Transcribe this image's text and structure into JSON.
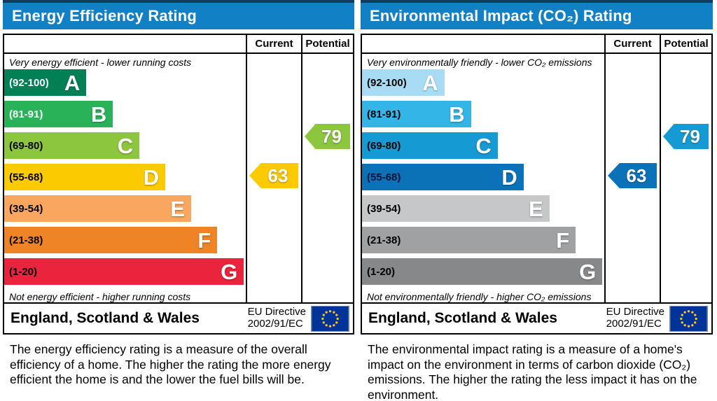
{
  "chart_data": [
    {
      "type": "bar",
      "title": "Energy Efficiency Rating",
      "scale_bands": [
        {
          "grade": "A",
          "min": 92,
          "max": 100
        },
        {
          "grade": "B",
          "min": 81,
          "max": 91
        },
        {
          "grade": "C",
          "min": 69,
          "max": 80
        },
        {
          "grade": "D",
          "min": 55,
          "max": 68
        },
        {
          "grade": "E",
          "min": 39,
          "max": 54
        },
        {
          "grade": "F",
          "min": 21,
          "max": 38
        },
        {
          "grade": "G",
          "min": 1,
          "max": 20
        }
      ],
      "current": 63,
      "current_band": "D",
      "potential": 79,
      "potential_band": "C",
      "top_note": "Very energy efficient - lower running costs",
      "bottom_note": "Not energy efficient - higher running costs",
      "region": "England, Scotland & Wales",
      "directive": "EU Directive 2002/91/EC"
    },
    {
      "type": "bar",
      "title": "Environmental Impact (CO₂) Rating",
      "scale_bands": [
        {
          "grade": "A",
          "min": 92,
          "max": 100
        },
        {
          "grade": "B",
          "min": 81,
          "max": 91
        },
        {
          "grade": "C",
          "min": 69,
          "max": 80
        },
        {
          "grade": "D",
          "min": 55,
          "max": 68
        },
        {
          "grade": "E",
          "min": 39,
          "max": 54
        },
        {
          "grade": "F",
          "min": 21,
          "max": 38
        },
        {
          "grade": "G",
          "min": 1,
          "max": 20
        }
      ],
      "current": 63,
      "current_band": "D",
      "potential": 79,
      "potential_band": "C",
      "top_note": "Very environmentally friendly - lower CO₂ emissions",
      "bottom_note": "Not environmentally friendly - higher CO₂ emissions",
      "region": "England, Scotland & Wales",
      "directive": "EU Directive 2002/91/EC"
    }
  ],
  "panels": [
    {
      "title": "Energy Efficiency Rating",
      "columns": {
        "current": "Current",
        "potential": "Potential"
      },
      "top_note": "Very energy efficient - lower running costs",
      "bottom_note": "Not energy efficient - higher running costs",
      "bands": [
        {
          "grade": "A",
          "range": "(92-100)",
          "color": "#008054",
          "width_pct": 34,
          "label_color": "#ffffff"
        },
        {
          "grade": "B",
          "range": "(81-91)",
          "color": "#2ab259",
          "width_pct": 45,
          "label_color": "#ffffff"
        },
        {
          "grade": "C",
          "range": "(69-80)",
          "color": "#8cc63f",
          "width_pct": 56,
          "label_color": "#000000"
        },
        {
          "grade": "D",
          "range": "(55-68)",
          "color": "#fcca00",
          "width_pct": 66.7,
          "label_color": "#000000"
        },
        {
          "grade": "E",
          "range": "(39-54)",
          "color": "#f9a65e",
          "width_pct": 77.4,
          "label_color": "#000000"
        },
        {
          "grade": "F",
          "range": "(21-38)",
          "color": "#ee8426",
          "width_pct": 88.2,
          "label_color": "#000000"
        },
        {
          "grade": "G",
          "range": "(1-20)",
          "color": "#e9243c",
          "width_pct": 99.2,
          "label_color": "#000000"
        }
      ],
      "current": {
        "value": "63",
        "color": "#fcca00"
      },
      "potential": {
        "value": "79",
        "color": "#8cc63f"
      },
      "footer": {
        "region": "England, Scotland & Wales",
        "directive_line1": "EU Directive",
        "directive_line2": "2002/91/EC"
      },
      "description": "The energy efficiency rating is a measure of the overall efficiency of a home. The higher the rating the more energy efficient the home is and the lower the fuel bills will be."
    },
    {
      "title": "Environmental Impact (CO₂) Rating",
      "columns": {
        "current": "Current",
        "potential": "Potential"
      },
      "top_note": "Very environmentally friendly - lower CO₂ emissions",
      "bottom_note": "Not environmentally friendly - higher CO₂ emissions",
      "bands": [
        {
          "grade": "A",
          "range": "(92-100)",
          "color": "#a8dcf4",
          "width_pct": 34,
          "label_color": "#000000"
        },
        {
          "grade": "B",
          "range": "(81-91)",
          "color": "#33b5e8",
          "width_pct": 45,
          "label_color": "#000000"
        },
        {
          "grade": "C",
          "range": "(69-80)",
          "color": "#159ad3",
          "width_pct": 56,
          "label_color": "#000000"
        },
        {
          "grade": "D",
          "range": "(55-68)",
          "color": "#0b72b8",
          "width_pct": 66.7,
          "label_color": "#00123a"
        },
        {
          "grade": "E",
          "range": "(39-54)",
          "color": "#c6c7c9",
          "width_pct": 77.4,
          "label_color": "#000000"
        },
        {
          "grade": "F",
          "range": "(21-38)",
          "color": "#9fa1a3",
          "width_pct": 88.2,
          "label_color": "#000000"
        },
        {
          "grade": "G",
          "range": "(1-20)",
          "color": "#87888a",
          "width_pct": 99.2,
          "label_color": "#000000"
        }
      ],
      "current": {
        "value": "63",
        "color": "#0b72b8"
      },
      "potential": {
        "value": "79",
        "color": "#159ad3"
      },
      "footer": {
        "region": "England, Scotland & Wales",
        "directive_line1": "EU Directive",
        "directive_line2": "2002/91/EC"
      },
      "description": "The environmental impact rating is a measure of a home's impact on the environment in terms of carbon dioxide (CO₂) emissions. The higher the rating the less impact it has on the environment."
    }
  ],
  "flag_colors": {
    "field": "#003399",
    "stars": "#ffcc00"
  }
}
